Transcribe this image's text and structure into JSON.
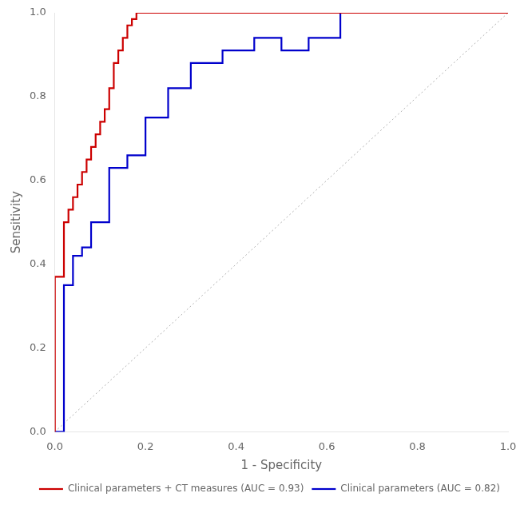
{
  "chart_data": {
    "type": "line",
    "xlabel": "1 - Specificity",
    "ylabel": "Sensitivity",
    "series": [
      {
        "name": "Clinical parameters + CT measures (AUC = 0.93)",
        "color": "#cc0000",
        "x": [
          0.0,
          0.0,
          0.02,
          0.02,
          0.03,
          0.03,
          0.04,
          0.04,
          0.05,
          0.05,
          0.06,
          0.06,
          0.07,
          0.07,
          0.08,
          0.08,
          0.09,
          0.09,
          0.1,
          0.1,
          0.11,
          0.11,
          0.12,
          0.12,
          0.13,
          0.13,
          0.14,
          0.14,
          0.15,
          0.15,
          0.16,
          0.16,
          0.17,
          0.17,
          0.18,
          0.18,
          0.2,
          0.2,
          1.0
        ],
        "values": [
          0.0,
          0.37,
          0.37,
          0.5,
          0.5,
          0.53,
          0.53,
          0.56,
          0.56,
          0.59,
          0.59,
          0.62,
          0.62,
          0.65,
          0.65,
          0.68,
          0.68,
          0.71,
          0.71,
          0.74,
          0.74,
          0.77,
          0.77,
          0.82,
          0.82,
          0.88,
          0.88,
          0.91,
          0.91,
          0.94,
          0.94,
          0.97,
          0.97,
          0.985,
          0.985,
          1.0,
          1.0,
          1.0,
          1.0
        ]
      },
      {
        "name": "Clinical parameters (AUC = 0.82)",
        "color": "#0000cc",
        "x": [
          0.0,
          0.0,
          0.02,
          0.02,
          0.04,
          0.04,
          0.06,
          0.06,
          0.08,
          0.08,
          0.12,
          0.12,
          0.16,
          0.16,
          0.2,
          0.2,
          0.25,
          0.25,
          0.3,
          0.3,
          0.37,
          0.37,
          0.44,
          0.44,
          0.5,
          0.5,
          0.56,
          0.56,
          0.63,
          0.63,
          0.75,
          0.75,
          1.0
        ],
        "values": [
          0.0,
          0.0,
          0.0,
          0.35,
          0.35,
          0.42,
          0.42,
          0.44,
          0.44,
          0.5,
          0.5,
          0.63,
          0.63,
          0.66,
          0.66,
          0.75,
          0.75,
          0.82,
          0.82,
          0.88,
          0.88,
          0.91,
          0.91,
          0.94,
          0.94,
          0.91,
          0.91,
          0.94,
          0.94,
          1.0,
          1.0,
          1.0,
          1.0
        ]
      },
      {
        "color": "#b0b0b0",
        "line_style": "dotted",
        "x": [
          0,
          1
        ],
        "values": [
          0,
          1
        ]
      }
    ],
    "xlim": [
      0.0,
      1.0
    ],
    "ylim": [
      0.0,
      1.0
    ],
    "xticks": [
      {
        "value": 0.0,
        "label": "0.0"
      },
      {
        "value": 0.2,
        "label": "0.2"
      },
      {
        "value": 0.4,
        "label": "0.4"
      },
      {
        "value": 0.6,
        "label": "0.6"
      },
      {
        "value": 0.8,
        "label": "0.8"
      },
      {
        "value": 1.0,
        "label": "1.0"
      }
    ],
    "yticks": [
      {
        "value": 0.0,
        "label": "0.0"
      },
      {
        "value": 0.2,
        "label": "0.2"
      },
      {
        "value": 0.4,
        "label": "0.4"
      },
      {
        "value": 0.6,
        "label": "0.6"
      },
      {
        "value": 0.8,
        "label": "0.8"
      },
      {
        "value": 1.0,
        "label": "1.0"
      }
    ],
    "grid": false,
    "legend": "lower right"
  }
}
